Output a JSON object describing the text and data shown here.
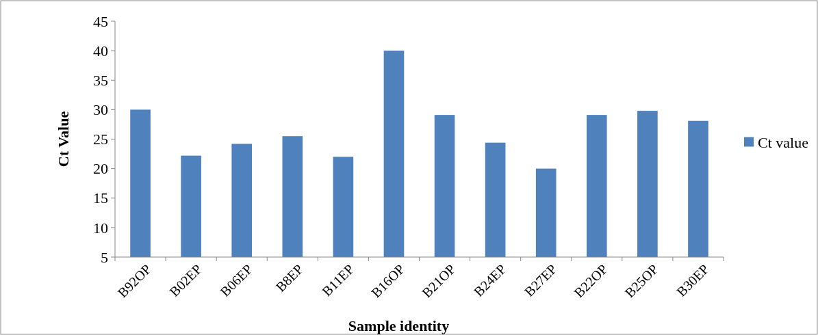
{
  "chart_data": {
    "type": "bar",
    "xlabel": "Sample identity",
    "ylabel": "Ct Value",
    "categories": [
      "B92OP",
      "B02EP",
      "B06EP",
      "B8EP",
      "B11EP",
      "B16OP",
      "B21OP",
      "B24EP",
      "B27EP",
      "B22OP",
      "B25OP",
      "B30EP"
    ],
    "series": [
      {
        "name": "Ct value",
        "color": "#4f81bd",
        "values": [
          30,
          22.2,
          24.2,
          25.5,
          22,
          40,
          29.1,
          24.4,
          20,
          29.1,
          29.8,
          28.1
        ]
      }
    ],
    "ylim": [
      5,
      45
    ],
    "yticks": [
      5,
      10,
      15,
      20,
      25,
      30,
      35,
      40,
      45
    ],
    "grid": false,
    "legend": "right"
  }
}
